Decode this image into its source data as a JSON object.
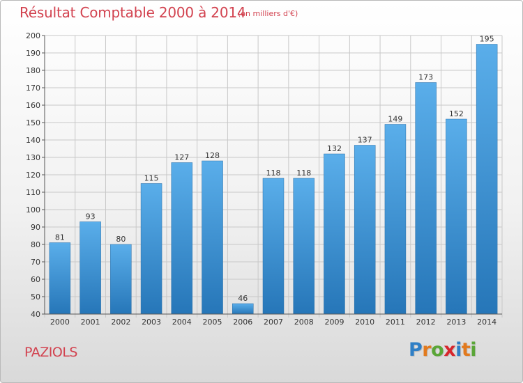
{
  "header": {
    "title": "Résultat Comptable 2000 à 2014",
    "subtitle": "(en milliers d'€)"
  },
  "footer": {
    "commune": "PAZIOLS",
    "logo": {
      "letters": [
        "P",
        "r",
        "o",
        "x",
        "i",
        "t",
        "i"
      ],
      "colors": [
        "#2f7fc6",
        "#e27a1e",
        "#5aa637",
        "#d7262c",
        "#2f7fc6",
        "#e27a1e",
        "#5aa637"
      ]
    }
  },
  "chart_data": {
    "type": "bar",
    "categories": [
      "2000",
      "2001",
      "2002",
      "2003",
      "2004",
      "2005",
      "2006",
      "2007",
      "2008",
      "2009",
      "2010",
      "2011",
      "2012",
      "2013",
      "2014"
    ],
    "values": [
      81,
      93,
      80,
      115,
      127,
      128,
      46,
      118,
      118,
      132,
      137,
      149,
      173,
      152,
      195
    ],
    "yticks": [
      40,
      50,
      60,
      70,
      80,
      90,
      100,
      110,
      120,
      130,
      140,
      150,
      160,
      170,
      180,
      190,
      200
    ],
    "ylim": [
      40,
      200
    ],
    "grid": true,
    "bar_color": "#3d94d8"
  }
}
